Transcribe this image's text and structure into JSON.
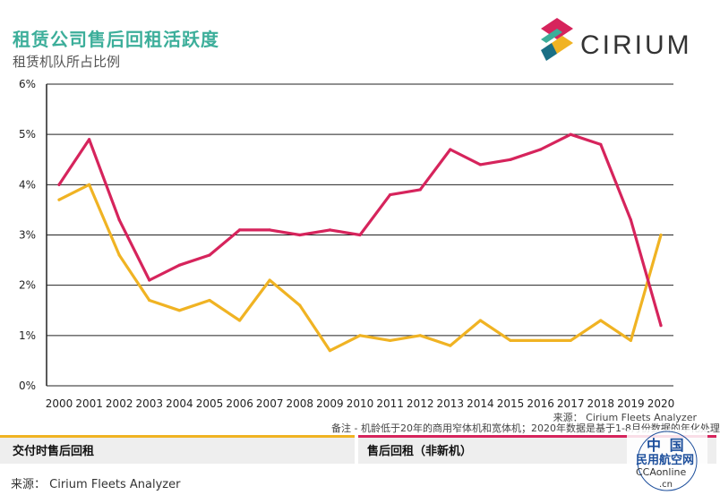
{
  "header": {
    "title": "租赁公司售后回租活跃度",
    "subtitle": "租赁机队所占比例",
    "logo_text": "CIRIUM"
  },
  "footer": {
    "source_top": "来源： Cirium Fleets Analyzer",
    "note": "备注 - 机龄低于20年的商用窄体机和宽体机；2020年数据是基于1-8月份数据的年化处理",
    "source_bottom": "来源： Cirium Fleets Analyzer"
  },
  "legend": [
    {
      "label": "交付时售后回租",
      "color": "#f0b323"
    },
    {
      "label": "售后回租（非新机）",
      "color": "#d6245c"
    }
  ],
  "watermark": {
    "line1": "中 国",
    "line2": "民用航空网",
    "line3": "CCAonline",
    "line4": ".cn"
  },
  "colors": {
    "title": "#3cae9a",
    "gridline": "#222222",
    "series_new": "#f0b323",
    "series_used": "#d6245c"
  },
  "chart_data": {
    "type": "line",
    "title": "租赁公司售后回租活跃度",
    "subtitle": "租赁机队所占比例",
    "x": [
      "2000",
      "2001",
      "2002",
      "2003",
      "2004",
      "2005",
      "2006",
      "2007",
      "2008",
      "2009",
      "2010",
      "2011",
      "2012",
      "2013",
      "2014",
      "2015",
      "2016",
      "2017",
      "2018",
      "2019",
      "2020"
    ],
    "ylim": [
      0,
      6
    ],
    "yticks": [
      "0%",
      "1%",
      "2%",
      "3%",
      "4%",
      "5%",
      "6%"
    ],
    "grid": true,
    "legend_position": "bottom",
    "series": [
      {
        "name": "交付时售后回租",
        "color": "#f0b323",
        "values": [
          3.7,
          4.0,
          2.6,
          1.7,
          1.5,
          1.7,
          1.3,
          2.1,
          1.6,
          0.7,
          1.0,
          0.9,
          1.0,
          0.8,
          1.3,
          0.9,
          0.9,
          0.9,
          1.3,
          0.9,
          3.0
        ]
      },
      {
        "name": "售后回租（非新机）",
        "color": "#d6245c",
        "values": [
          4.0,
          4.9,
          3.3,
          2.1,
          2.4,
          2.6,
          3.1,
          3.1,
          3.0,
          3.1,
          3.0,
          3.8,
          3.9,
          4.7,
          4.4,
          4.5,
          4.7,
          5.0,
          4.8,
          3.3,
          1.2
        ]
      }
    ]
  }
}
